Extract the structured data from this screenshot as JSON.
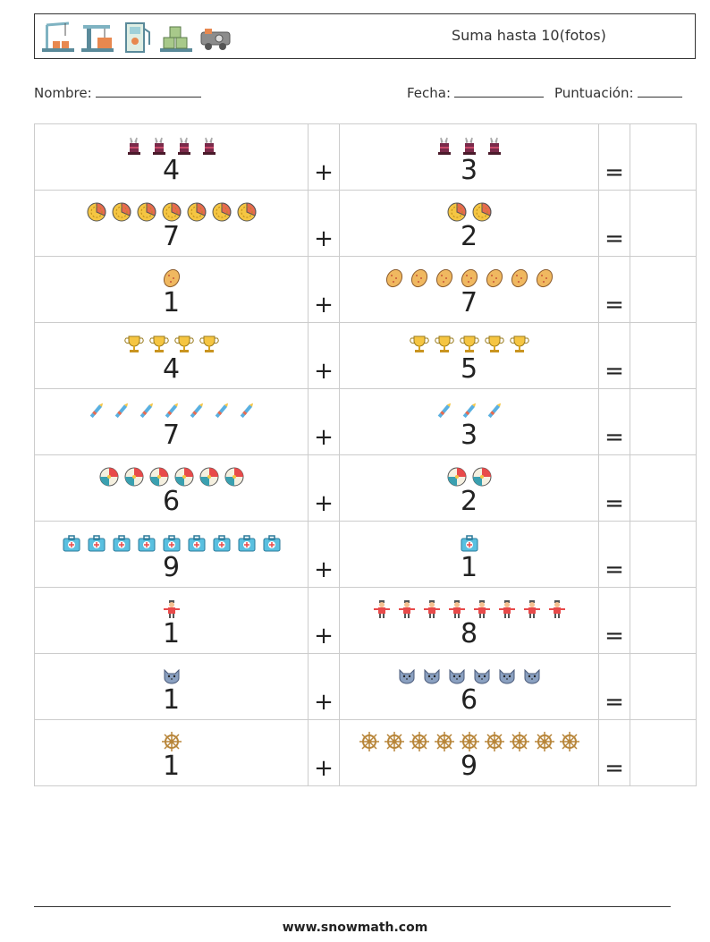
{
  "header": {
    "title": "Suma hasta 10(fotos)",
    "logos": [
      "crane-icon",
      "loading-crane-icon",
      "fuel-pump-icon",
      "cargo-pallet-icon",
      "train-icon"
    ]
  },
  "info": {
    "name_label": "Nombre:",
    "date_label": "Fecha:",
    "score_label": "Puntuación:"
  },
  "operators": {
    "plus": "+",
    "equals": "="
  },
  "problems": [
    {
      "a": 4,
      "b": 3,
      "icon": "magic-hat-icon"
    },
    {
      "a": 7,
      "b": 2,
      "icon": "pie-chart-icon"
    },
    {
      "a": 1,
      "b": 7,
      "icon": "potato-icon"
    },
    {
      "a": 4,
      "b": 5,
      "icon": "trophy-icon"
    },
    {
      "a": 7,
      "b": 3,
      "icon": "crayon-icon"
    },
    {
      "a": 6,
      "b": 2,
      "icon": "beach-ball-icon"
    },
    {
      "a": 9,
      "b": 1,
      "icon": "first-aid-kit-icon"
    },
    {
      "a": 1,
      "b": 8,
      "icon": "scarecrow-icon"
    },
    {
      "a": 1,
      "b": 6,
      "icon": "cat-face-icon"
    },
    {
      "a": 1,
      "b": 9,
      "icon": "ship-wheel-icon"
    }
  ],
  "footer": {
    "url": "www.snowmath.com"
  }
}
